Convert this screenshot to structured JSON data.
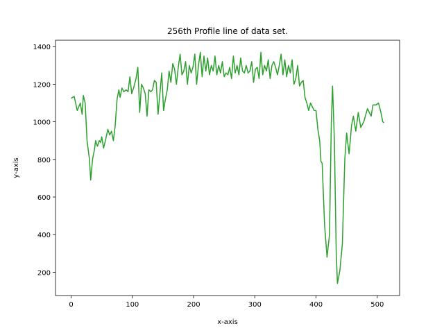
{
  "chart_data": {
    "type": "line",
    "title": "256th Profile line of data set.",
    "x_label": "x-axis",
    "y_label": "y-axis",
    "xlim": [
      -25.5,
      536.5
    ],
    "xticks": [
      0,
      100,
      200,
      300,
      400,
      500
    ],
    "ylim": [
      76,
      1434
    ],
    "yticks": [
      200,
      400,
      600,
      800,
      1000,
      1200,
      1400
    ],
    "series": [
      {
        "color": "#2ca02c",
        "x": [
          0,
          5,
          10,
          15,
          18,
          20,
          23,
          26,
          28,
          30,
          32,
          35,
          38,
          40,
          43,
          46,
          48,
          50,
          53,
          56,
          60,
          63,
          66,
          69,
          72,
          75,
          78,
          80,
          83,
          86,
          90,
          93,
          96,
          99,
          102,
          106,
          109,
          112,
          115,
          118,
          121,
          124,
          127,
          130,
          133,
          136,
          139,
          142,
          145,
          148,
          151,
          154,
          157,
          160,
          163,
          166,
          169,
          172,
          175,
          178,
          181,
          184,
          187,
          190,
          193,
          196,
          199,
          202,
          205,
          208,
          211,
          214,
          217,
          220,
          223,
          226,
          229,
          232,
          235,
          238,
          241,
          244,
          247,
          250,
          253,
          256,
          259,
          262,
          265,
          268,
          271,
          274,
          277,
          280,
          283,
          286,
          289,
          292,
          295,
          298,
          301,
          304,
          307,
          310,
          313,
          316,
          319,
          322,
          325,
          328,
          331,
          334,
          337,
          340,
          343,
          346,
          349,
          352,
          355,
          358,
          361,
          364,
          367,
          370,
          373,
          376,
          379,
          382,
          385,
          388,
          391,
          394,
          397,
          400,
          403,
          406,
          408,
          410,
          414,
          418,
          422,
          425,
          427,
          430,
          433,
          435,
          439,
          443,
          447,
          450,
          454,
          458,
          461,
          465,
          469,
          473,
          478,
          484,
          490,
          493,
          498,
          502,
          506,
          509,
          511
        ],
        "values": [
          1125,
          1135,
          1060,
          1100,
          1040,
          1140,
          1100,
          900,
          850,
          800,
          690,
          800,
          850,
          900,
          870,
          900,
          890,
          920,
          860,
          900,
          960,
          930,
          950,
          900,
          980,
          1120,
          1170,
          1130,
          1180,
          1160,
          1170,
          1160,
          1240,
          1150,
          1180,
          1230,
          1290,
          1050,
          1200,
          1180,
          1150,
          1030,
          1170,
          1160,
          1170,
          1220,
          1210,
          1040,
          1150,
          1260,
          1060,
          1120,
          1170,
          1270,
          1210,
          1310,
          1280,
          1200,
          1290,
          1360,
          1250,
          1270,
          1320,
          1200,
          1300,
          1260,
          1290,
          1360,
          1200,
          1300,
          1370,
          1240,
          1350,
          1270,
          1340,
          1250,
          1300,
          1270,
          1350,
          1250,
          1300,
          1260,
          1320,
          1240,
          1260,
          1250,
          1290,
          1230,
          1350,
          1260,
          1300,
          1250,
          1340,
          1270,
          1260,
          1300,
          1260,
          1270,
          1320,
          1210,
          1280,
          1290,
          1230,
          1370,
          1250,
          1300,
          1270,
          1330,
          1230,
          1300,
          1320,
          1290,
          1250,
          1300,
          1360,
          1250,
          1330,
          1240,
          1300,
          1260,
          1330,
          1200,
          1230,
          1300,
          1190,
          1210,
          1220,
          1130,
          1100,
          1060,
          1100,
          1080,
          1060,
          1060,
          960,
          900,
          790,
          780,
          450,
          280,
          400,
          1000,
          1190,
          900,
          300,
          140,
          210,
          350,
          800,
          940,
          830,
          980,
          1030,
          950,
          1050,
          970,
          1000,
          1070,
          1030,
          1090,
          1090,
          1100,
          1050,
          1000,
          995
        ]
      }
    ]
  }
}
